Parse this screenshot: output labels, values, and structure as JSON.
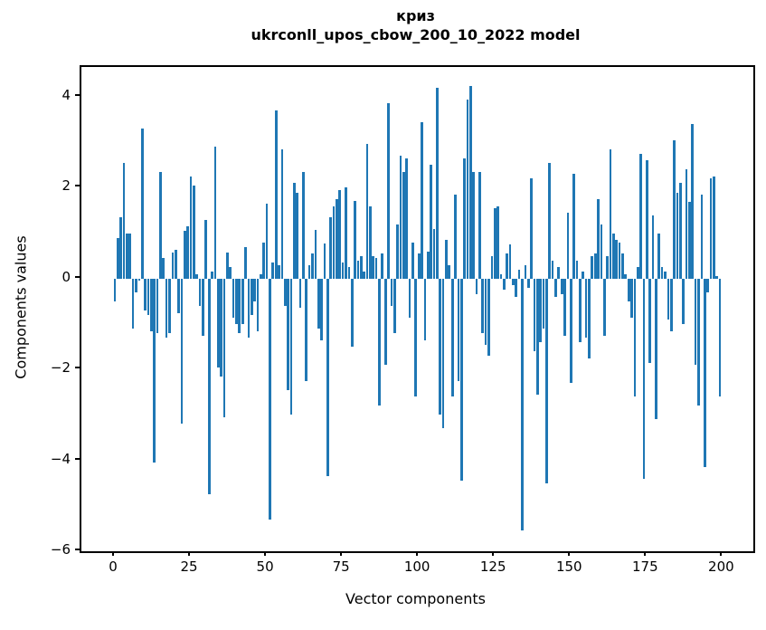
{
  "title": {
    "line1": "криз",
    "line2": "ukrconll_upos_cbow_200_10_2022 model"
  },
  "chart_data": {
    "type": "bar",
    "title": "криз\nukrconll_upos_cbow_200_10_2022 model",
    "xlabel": "Vector components",
    "ylabel": "Components values",
    "bar_color": "#1f77b4",
    "xlim": [
      -11,
      210
    ],
    "ylim": [
      -6.0,
      4.66
    ],
    "grid": false,
    "x_ticks": [
      0,
      25,
      50,
      75,
      100,
      125,
      150,
      175,
      200
    ],
    "x_tick_labels": [
      "0",
      "25",
      "50",
      "75",
      "100",
      "125",
      "150",
      "175",
      "200"
    ],
    "y_ticks": [
      4,
      2,
      0,
      -2,
      -4,
      -6
    ],
    "y_tick_labels": [
      "4",
      "2",
      "0",
      "−2",
      "−4",
      "−6"
    ],
    "x": "component index 0..199",
    "values": [
      -0.5,
      0.9,
      1.35,
      2.55,
      1.0,
      1.0,
      -1.1,
      -0.3,
      -0.05,
      3.3,
      -0.7,
      -0.8,
      -1.15,
      -4.05,
      -1.2,
      2.35,
      0.45,
      -1.3,
      -1.2,
      0.57,
      0.63,
      -0.75,
      -3.2,
      1.05,
      1.15,
      2.25,
      2.05,
      0.1,
      -0.6,
      -1.25,
      1.3,
      -4.75,
      0.15,
      2.9,
      -1.95,
      -2.15,
      -3.05,
      0.57,
      0.25,
      -0.85,
      -1.0,
      -1.2,
      -1.0,
      0.7,
      -1.3,
      -0.8,
      -0.5,
      -1.15,
      0.1,
      0.8,
      1.65,
      -5.3,
      0.35,
      3.7,
      0.3,
      2.85,
      -0.6,
      -2.45,
      -3.0,
      2.1,
      1.9,
      -0.65,
      2.35,
      -2.25,
      0.3,
      0.55,
      1.08,
      -1.1,
      -1.35,
      0.77,
      -4.35,
      1.35,
      1.6,
      1.75,
      1.95,
      0.35,
      2.0,
      0.25,
      -1.5,
      1.72,
      0.4,
      0.5,
      0.15,
      2.97,
      1.6,
      0.5,
      0.45,
      -2.8,
      0.55,
      -1.9,
      3.87,
      -0.6,
      -1.2,
      1.2,
      2.7,
      2.35,
      2.65,
      -0.85,
      0.8,
      -2.6,
      0.55,
      3.45,
      -1.35,
      0.6,
      2.5,
      1.1,
      4.2,
      -3.0,
      -3.3,
      0.85,
      0.3,
      -2.6,
      1.85,
      -2.25,
      -4.45,
      2.65,
      3.95,
      4.25,
      2.35,
      -0.35,
      2.35,
      -1.2,
      -1.45,
      -1.7,
      0.5,
      1.55,
      1.6,
      0.1,
      -0.25,
      0.55,
      0.75,
      -0.15,
      -0.4,
      0.2,
      -5.55,
      0.3,
      -0.2,
      2.2,
      -1.6,
      -2.55,
      -1.4,
      -1.1,
      -4.5,
      2.55,
      0.4,
      -0.4,
      0.25,
      -0.35,
      -1.25,
      1.45,
      -2.3,
      2.3,
      0.4,
      -1.4,
      0.15,
      -1.3,
      -1.75,
      0.5,
      0.55,
      1.75,
      1.2,
      -1.25,
      0.5,
      2.85,
      1.0,
      0.85,
      0.8,
      0.55,
      0.1,
      -0.5,
      -0.85,
      -2.6,
      0.25,
      2.75,
      -4.4,
      2.6,
      -1.85,
      1.4,
      -3.1,
      1.0,
      0.25,
      0.15,
      -0.9,
      -1.15,
      3.05,
      1.9,
      2.1,
      -1.0,
      2.4,
      1.7,
      3.4,
      -1.9,
      -2.8,
      1.85,
      -4.15,
      -0.3,
      2.2,
      2.25,
      0.05,
      -2.6
    ]
  },
  "axes": {
    "xlabel": "Vector components",
    "ylabel": "Components values"
  }
}
